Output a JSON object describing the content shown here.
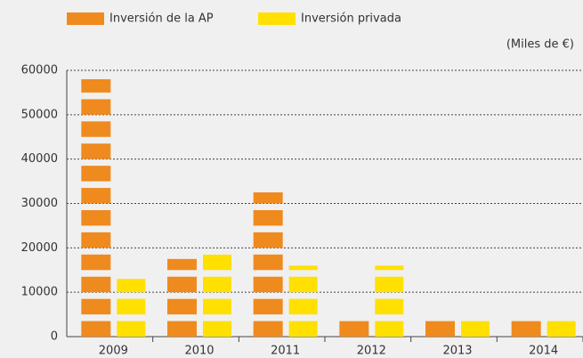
{
  "chart_data": {
    "type": "bar",
    "unit_label": "(Miles de €)",
    "categories": [
      "2009",
      "2010",
      "2011",
      "2012",
      "2013",
      "2014"
    ],
    "series": [
      {
        "name": "Inversión de la AP",
        "color": "#ef8a1e",
        "values": [
          58000,
          17500,
          32500,
          3500,
          3500,
          3500
        ]
      },
      {
        "name": "Inversión privada",
        "color": "#ffe000",
        "values": [
          13000,
          18500,
          16000,
          16000,
          3500,
          3500
        ]
      }
    ],
    "ylim": [
      0,
      60000
    ],
    "yticks": [
      0,
      10000,
      20000,
      30000,
      40000,
      50000,
      60000
    ],
    "grid": true
  }
}
